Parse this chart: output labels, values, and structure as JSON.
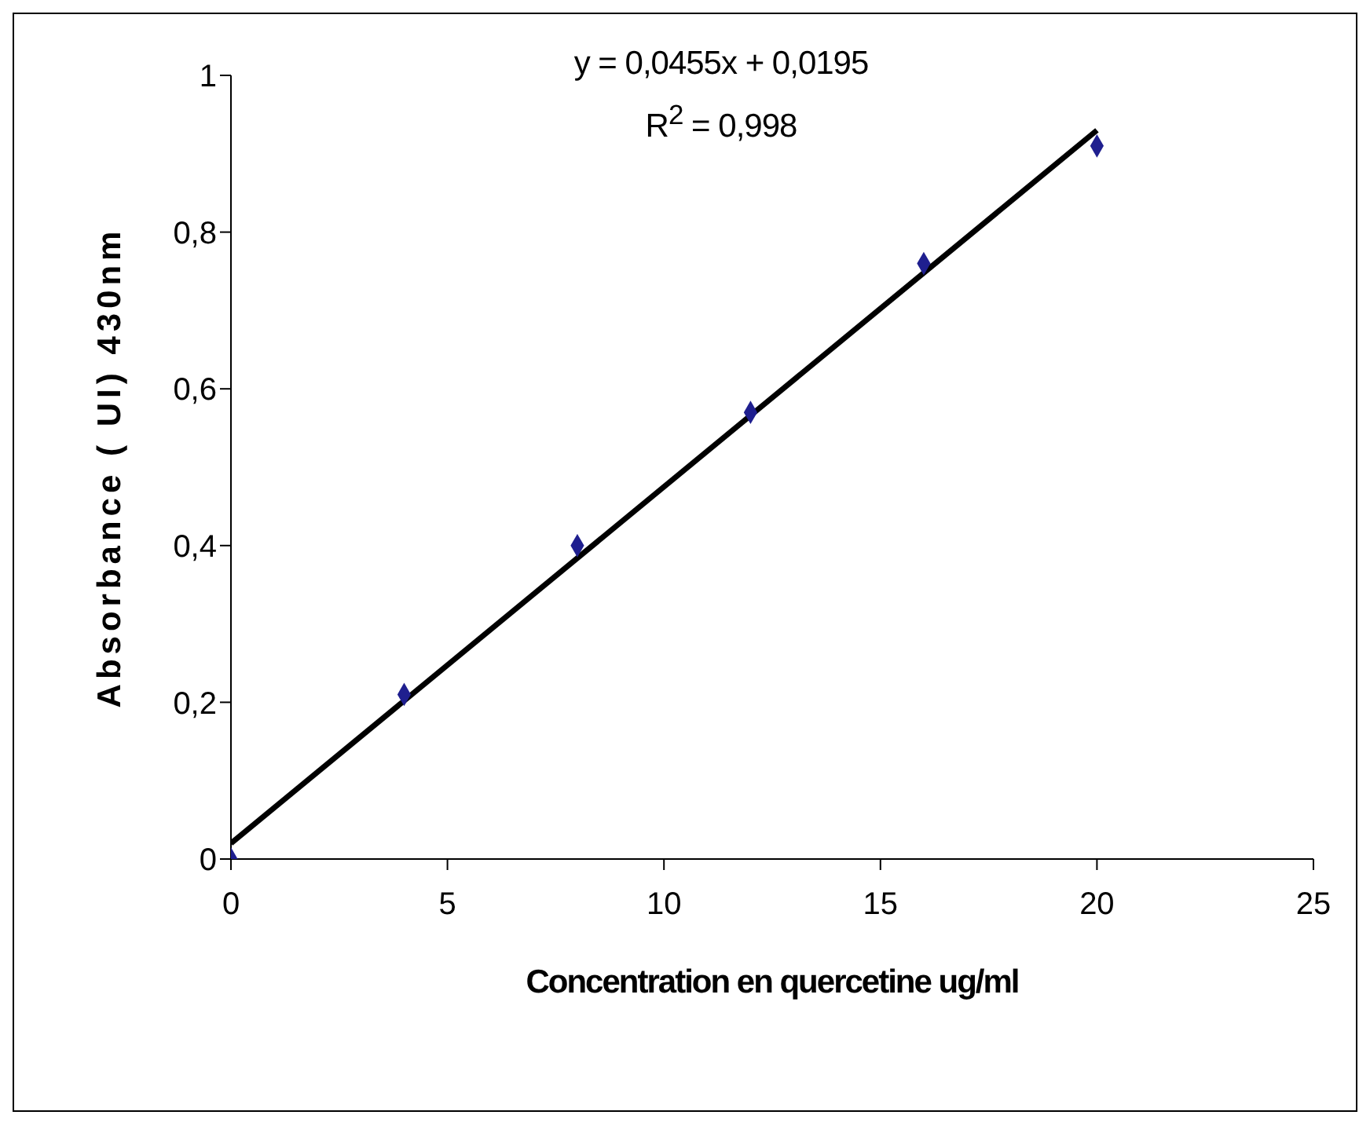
{
  "chart_data": {
    "type": "scatter",
    "xlabel": "Concentration en quercetine ug/ml",
    "ylabel": "Absorbance ( UI) 430nm",
    "xlim": [
      0,
      25
    ],
    "xticks": [
      0,
      5,
      10,
      15,
      20,
      25
    ],
    "ylim": [
      0,
      1
    ],
    "yticks": [
      0,
      {
        "value": 0.2,
        "label": "0,2"
      },
      {
        "value": 0.4,
        "label": "0,4"
      },
      {
        "value": 0.6,
        "label": "0,6"
      },
      {
        "value": 0.8,
        "label": "0,8"
      },
      1
    ],
    "grid": false,
    "legend": false,
    "marker": "diamond",
    "series": [
      {
        "color": "#1f1f8f",
        "x": [
          0,
          4,
          8,
          12,
          16,
          20
        ],
        "values": [
          0,
          0.21,
          0.4,
          0.57,
          0.76,
          0.91
        ]
      },
      {
        "type": "line",
        "color": "#000000",
        "marker": "none",
        "line_style": "solid",
        "x": [
          0,
          20
        ],
        "values": [
          0.02,
          0.93
        ]
      }
    ],
    "annotations": [
      "y = 0,0455x + 0,0195",
      "R$^{2}$ = 0,998"
    ]
  }
}
